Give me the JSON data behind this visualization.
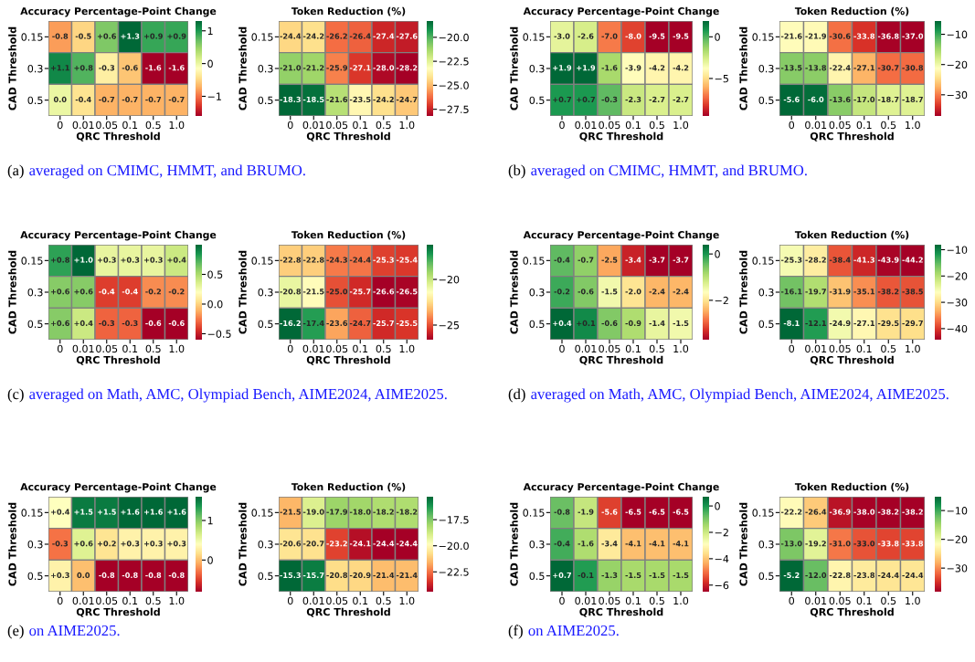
{
  "chart_data": [
    {
      "type": "heatmap",
      "title": "Accuracy Percentage-Point Change",
      "xlabel": "QRC Threshold",
      "ylabel": "CAD Threshold",
      "categories": [
        "0",
        "0.01",
        "0.05",
        "0.1",
        "0.5",
        "1.0"
      ],
      "y_categories": [
        "0.15",
        "0.3",
        "0.5"
      ],
      "cells": [
        [
          -0.8,
          -0.5,
          0.6,
          1.3,
          0.9,
          0.9
        ],
        [
          1.1,
          0.8,
          -0.3,
          -0.6,
          -1.6,
          -1.6
        ],
        [
          0.0,
          -0.4,
          -0.7,
          -0.7,
          -0.7,
          -0.7
        ]
      ],
      "cell_labels": [
        [
          "-0.8",
          "-0.5",
          "+0.6",
          "+1.3",
          "+0.9",
          "+0.9"
        ],
        [
          "+1.1",
          "+0.8",
          "-0.3",
          "-0.6",
          "-1.6",
          "-1.6"
        ],
        [
          "0.0",
          "-0.4",
          "-0.7",
          "-0.7",
          "-0.7",
          "-0.7"
        ]
      ],
      "clim": [
        -1.6,
        1.3
      ],
      "cticks": [
        -1,
        0,
        1
      ],
      "annotations": [
        "(a)",
        "averaged on CMIMC, HMMT, and BRUMO."
      ]
    },
    {
      "type": "heatmap",
      "title": "Token Reduction (%)",
      "xlabel": "QRC Threshold",
      "ylabel": "CAD Threshold",
      "categories": [
        "0",
        "0.01",
        "0.05",
        "0.1",
        "0.5",
        "1.0"
      ],
      "y_categories": [
        "0.15",
        "0.3",
        "0.5"
      ],
      "cells": [
        [
          -24.4,
          -24.2,
          -26.2,
          -26.4,
          -27.4,
          -27.6
        ],
        [
          -21.0,
          -21.2,
          -25.9,
          -27.1,
          -28.0,
          -28.2
        ],
        [
          -18.3,
          -18.5,
          -21.6,
          -23.5,
          -24.2,
          -24.7
        ]
      ],
      "cell_labels": [
        [
          "-24.4",
          "-24.2",
          "-26.2",
          "-26.4",
          "-27.4",
          "-27.6"
        ],
        [
          "-21.0",
          "-21.2",
          "-25.9",
          "-27.1",
          "-28.0",
          "-28.2"
        ],
        [
          "-18.3",
          "-18.5",
          "-21.6",
          "-23.5",
          "-24.2",
          "-24.7"
        ]
      ],
      "clim": [
        -28.2,
        -18.3
      ],
      "cticks": [
        -27.5,
        {
          "value": -25,
          "label": "−25.0"
        },
        -22.5,
        {
          "value": -20,
          "label": "−20.0"
        }
      ]
    },
    {
      "type": "heatmap",
      "title": "Accuracy Percentage-Point Change",
      "xlabel": "QRC Threshold",
      "ylabel": "CAD Threshold",
      "categories": [
        "0",
        "0.01",
        "0.05",
        "0.1",
        "0.5",
        "1.0"
      ],
      "y_categories": [
        "0.15",
        "0.3",
        "0.5"
      ],
      "cells": [
        [
          -3.0,
          -2.6,
          -7.0,
          -8.0,
          -9.5,
          -9.5
        ],
        [
          1.9,
          1.9,
          -1.6,
          -3.9,
          -4.2,
          -4.2
        ],
        [
          0.7,
          0.7,
          -0.3,
          -2.3,
          -2.7,
          -2.7
        ]
      ],
      "cell_labels": [
        [
          "-3.0",
          "-2.6",
          "-7.0",
          "-8.0",
          "-9.5",
          "-9.5"
        ],
        [
          "+1.9",
          "+1.9",
          "-1.6",
          "-3.9",
          "-4.2",
          "-4.2"
        ],
        [
          "+0.7",
          "+0.7",
          "-0.3",
          "-2.3",
          "-2.7",
          "-2.7"
        ]
      ],
      "clim": [
        -9.5,
        1.9
      ],
      "cticks": [
        -5,
        0
      ],
      "annotations": [
        "(b)",
        "averaged on CMIMC, HMMT, and BRUMO."
      ]
    },
    {
      "type": "heatmap",
      "title": "Token Reduction (%)",
      "xlabel": "QRC Threshold",
      "ylabel": "CAD Threshold",
      "categories": [
        "0",
        "0.01",
        "0.05",
        "0.1",
        "0.5",
        "1.0"
      ],
      "y_categories": [
        "0.15",
        "0.3",
        "0.5"
      ],
      "cells": [
        [
          -21.6,
          -21.9,
          -30.6,
          -33.8,
          -36.8,
          -37.0
        ],
        [
          -13.5,
          -13.8,
          -22.4,
          -27.1,
          -30.7,
          -30.8
        ],
        [
          -5.6,
          -6.0,
          -13.6,
          -17.0,
          -18.7,
          -18.7
        ]
      ],
      "cell_labels": [
        [
          "-21.6",
          "-21.9",
          "-30.6",
          "-33.8",
          "-36.8",
          "-37.0"
        ],
        [
          "-13.5",
          "-13.8",
          "-22.4",
          "-27.1",
          "-30.7",
          "-30.8"
        ],
        [
          "-5.6",
          "-6.0",
          "-13.6",
          "-17.0",
          "-18.7",
          "-18.7"
        ]
      ],
      "clim": [
        -37.0,
        -5.6
      ],
      "cticks": [
        -30,
        -20,
        -10
      ]
    },
    {
      "type": "heatmap",
      "title": "Accuracy Percentage-Point Change",
      "xlabel": "QRC Threshold",
      "ylabel": "CAD Threshold",
      "categories": [
        "0",
        "0.01",
        "0.05",
        "0.1",
        "0.5",
        "1.0"
      ],
      "y_categories": [
        "0.15",
        "0.3",
        "0.5"
      ],
      "cells": [
        [
          0.8,
          1.0,
          0.3,
          0.3,
          0.3,
          0.4
        ],
        [
          0.6,
          0.6,
          -0.4,
          -0.4,
          -0.2,
          -0.2
        ],
        [
          0.6,
          0.4,
          -0.3,
          -0.3,
          -0.6,
          -0.6
        ]
      ],
      "cell_labels": [
        [
          "+0.8",
          "+1.0",
          "+0.3",
          "+0.3",
          "+0.3",
          "+0.4"
        ],
        [
          "+0.6",
          "+0.6",
          "-0.4",
          "-0.4",
          "-0.2",
          "-0.2"
        ],
        [
          "+0.6",
          "+0.4",
          "-0.3",
          "-0.3",
          "-0.6",
          "-0.6"
        ]
      ],
      "clim": [
        -0.6,
        1.0
      ],
      "cticks": [
        -0.5,
        {
          "value": 0,
          "label": "0.0"
        },
        0.5
      ],
      "annotations": [
        "(c)",
        "averaged on Math, AMC, Olympiad Bench, AIME2024, AIME2025."
      ]
    },
    {
      "type": "heatmap",
      "title": "Token Reduction (%)",
      "xlabel": "QRC Threshold",
      "ylabel": "CAD Threshold",
      "categories": [
        "0",
        "0.01",
        "0.05",
        "0.1",
        "0.5",
        "1.0"
      ],
      "y_categories": [
        "0.15",
        "0.3",
        "0.5"
      ],
      "cells": [
        [
          -22.8,
          -22.8,
          -24.3,
          -24.4,
          -25.3,
          -25.4
        ],
        [
          -20.8,
          -21.5,
          -25.0,
          -25.7,
          -26.6,
          -26.5
        ],
        [
          -16.2,
          -17.4,
          -23.6,
          -24.7,
          -25.7,
          -25.5
        ]
      ],
      "cell_labels": [
        [
          "-22.8",
          "-22.8",
          "-24.3",
          "-24.4",
          "-25.3",
          "-25.4"
        ],
        [
          "-20.8",
          "-21.5",
          "-25.0",
          "-25.7",
          "-26.6",
          "-26.5"
        ],
        [
          "-16.2",
          "-17.4",
          "-23.6",
          "-24.7",
          "-25.7",
          "-25.5"
        ]
      ],
      "clim": [
        -26.6,
        -16.2
      ],
      "cticks": [
        -25,
        -20
      ]
    },
    {
      "type": "heatmap",
      "title": "Accuracy Percentage-Point Change",
      "xlabel": "QRC Threshold",
      "ylabel": "CAD Threshold",
      "categories": [
        "0",
        "0.01",
        "0.05",
        "0.1",
        "0.5",
        "1.0"
      ],
      "y_categories": [
        "0.15",
        "0.3",
        "0.5"
      ],
      "cells": [
        [
          -0.4,
          -0.7,
          -2.5,
          -3.4,
          -3.7,
          -3.7
        ],
        [
          -0.2,
          -0.6,
          -1.5,
          -2.0,
          -2.4,
          -2.4
        ],
        [
          0.4,
          0.1,
          -0.6,
          -0.9,
          -1.4,
          -1.5
        ]
      ],
      "cell_labels": [
        [
          "-0.4",
          "-0.7",
          "-2.5",
          "-3.4",
          "-3.7",
          "-3.7"
        ],
        [
          "-0.2",
          "-0.6",
          "-1.5",
          "-2.0",
          "-2.4",
          "-2.4"
        ],
        [
          "+0.4",
          "+0.1",
          "-0.6",
          "-0.9",
          "-1.4",
          "-1.5"
        ]
      ],
      "clim": [
        -3.7,
        0.4
      ],
      "cticks": [
        -2,
        0
      ],
      "annotations": [
        "(d)",
        "averaged on Math, AMC, Olympiad Bench, AIME2024, AIME2025."
      ]
    },
    {
      "type": "heatmap",
      "title": "Token Reduction (%)",
      "xlabel": "QRC Threshold",
      "ylabel": "CAD Threshold",
      "categories": [
        "0",
        "0.01",
        "0.05",
        "0.1",
        "0.5",
        "1.0"
      ],
      "y_categories": [
        "0.15",
        "0.3",
        "0.5"
      ],
      "cells": [
        [
          -25.3,
          -28.2,
          -38.4,
          -41.3,
          -43.9,
          -44.2
        ],
        [
          -16.1,
          -19.7,
          -31.9,
          -35.1,
          -38.2,
          -38.5
        ],
        [
          -8.1,
          -12.1,
          -24.9,
          -27.1,
          -29.5,
          -29.7
        ]
      ],
      "cell_labels": [
        [
          "-25.3",
          "-28.2",
          "-38.4",
          "-41.3",
          "-43.9",
          "-44.2"
        ],
        [
          "-16.1",
          "-19.7",
          "-31.9",
          "-35.1",
          "-38.2",
          "-38.5"
        ],
        [
          "-8.1",
          "-12.1",
          "-24.9",
          "-27.1",
          "-29.5",
          "-29.7"
        ]
      ],
      "clim": [
        -44.2,
        -8.1
      ],
      "cticks": [
        -40,
        -30,
        -20,
        -10
      ]
    },
    {
      "type": "heatmap",
      "title": "Accuracy Percentage-Point Change",
      "xlabel": "QRC Threshold",
      "ylabel": "CAD Threshold",
      "categories": [
        "0",
        "0.01",
        "0.05",
        "0.1",
        "0.5",
        "1.0"
      ],
      "y_categories": [
        "0.15",
        "0.3",
        "0.5"
      ],
      "cells": [
        [
          0.4,
          1.5,
          1.5,
          1.6,
          1.6,
          1.6
        ],
        [
          -0.3,
          0.6,
          0.2,
          0.3,
          0.3,
          0.3
        ],
        [
          0.3,
          0.0,
          -0.8,
          -0.8,
          -0.8,
          -0.8
        ]
      ],
      "cell_labels": [
        [
          "+0.4",
          "+1.5",
          "+1.5",
          "+1.6",
          "+1.6",
          "+1.6"
        ],
        [
          "-0.3",
          "+0.6",
          "+0.2",
          "+0.3",
          "+0.3",
          "+0.3"
        ],
        [
          "+0.3",
          "0.0",
          "-0.8",
          "-0.8",
          "-0.8",
          "-0.8"
        ]
      ],
      "clim": [
        -0.8,
        1.6
      ],
      "cticks": [
        0,
        1
      ],
      "annotations": [
        "(e)",
        "on AIME2025."
      ]
    },
    {
      "type": "heatmap",
      "title": "Token Reduction (%)",
      "xlabel": "QRC Threshold",
      "ylabel": "CAD Threshold",
      "categories": [
        "0",
        "0.01",
        "0.05",
        "0.1",
        "0.5",
        "1.0"
      ],
      "y_categories": [
        "0.15",
        "0.3",
        "0.5"
      ],
      "cells": [
        [
          -21.5,
          -19.0,
          -17.9,
          -18.0,
          -18.2,
          -18.2
        ],
        [
          -20.6,
          -20.7,
          -23.2,
          -24.1,
          -24.4,
          -24.4
        ],
        [
          -15.3,
          -15.7,
          -20.8,
          -20.9,
          -21.4,
          -21.4
        ]
      ],
      "cell_labels": [
        [
          "-21.5",
          "-19.0",
          "-17.9",
          "-18.0",
          "-18.2",
          "-18.2"
        ],
        [
          "-20.6",
          "-20.7",
          "-23.2",
          "-24.1",
          "-24.4",
          "-24.4"
        ],
        [
          "-15.3",
          "-15.7",
          "-20.8",
          "-20.9",
          "-21.4",
          "-21.4"
        ]
      ],
      "clim": [
        -24.4,
        -15.3
      ],
      "cticks": [
        -22.5,
        {
          "value": -20,
          "label": "−20.0"
        },
        -17.5
      ]
    },
    {
      "type": "heatmap",
      "title": "Accuracy Percentage-Point Change",
      "xlabel": "QRC Threshold",
      "ylabel": "CAD Threshold",
      "categories": [
        "0",
        "0.01",
        "0.05",
        "0.1",
        "0.5",
        "1.0"
      ],
      "y_categories": [
        "0.15",
        "0.3",
        "0.5"
      ],
      "cells": [
        [
          -0.8,
          -1.9,
          -5.6,
          -6.5,
          -6.5,
          -6.5
        ],
        [
          -0.4,
          -1.6,
          -3.4,
          -4.1,
          -4.1,
          -4.1
        ],
        [
          0.7,
          -0.1,
          -1.3,
          -1.5,
          -1.5,
          -1.5
        ]
      ],
      "cell_labels": [
        [
          "-0.8",
          "-1.9",
          "-5.6",
          "-6.5",
          "-6.5",
          "-6.5"
        ],
        [
          "-0.4",
          "-1.6",
          "-3.4",
          "-4.1",
          "-4.1",
          "-4.1"
        ],
        [
          "+0.7",
          "-0.1",
          "-1.3",
          "-1.5",
          "-1.5",
          "-1.5"
        ]
      ],
      "clim": [
        -6.5,
        0.7
      ],
      "cticks": [
        -6,
        -4,
        -2,
        0
      ],
      "annotations": [
        "(f)",
        "on AIME2025."
      ]
    },
    {
      "type": "heatmap",
      "title": "Token Reduction (%)",
      "xlabel": "QRC Threshold",
      "ylabel": "CAD Threshold",
      "categories": [
        "0",
        "0.01",
        "0.05",
        "0.1",
        "0.5",
        "1.0"
      ],
      "y_categories": [
        "0.15",
        "0.3",
        "0.5"
      ],
      "cells": [
        [
          -22.2,
          -26.4,
          -36.9,
          -38.0,
          -38.2,
          -38.2
        ],
        [
          -13.0,
          -19.2,
          -31.0,
          -33.0,
          -33.8,
          -33.8
        ],
        [
          -5.2,
          -12.0,
          -22.8,
          -23.8,
          -24.4,
          -24.4
        ]
      ],
      "cell_labels": [
        [
          "-22.2",
          "-26.4",
          "-36.9",
          "-38.0",
          "-38.2",
          "-38.2"
        ],
        [
          "-13.0",
          "-19.2",
          "-31.0",
          "-33.0",
          "-33.8",
          "-33.8"
        ],
        [
          "-5.2",
          "-12.0",
          "-22.8",
          "-23.8",
          "-24.4",
          "-24.4"
        ]
      ],
      "clim": [
        -38.2,
        -5.2
      ],
      "cticks": [
        -30,
        -20,
        -10
      ]
    }
  ]
}
